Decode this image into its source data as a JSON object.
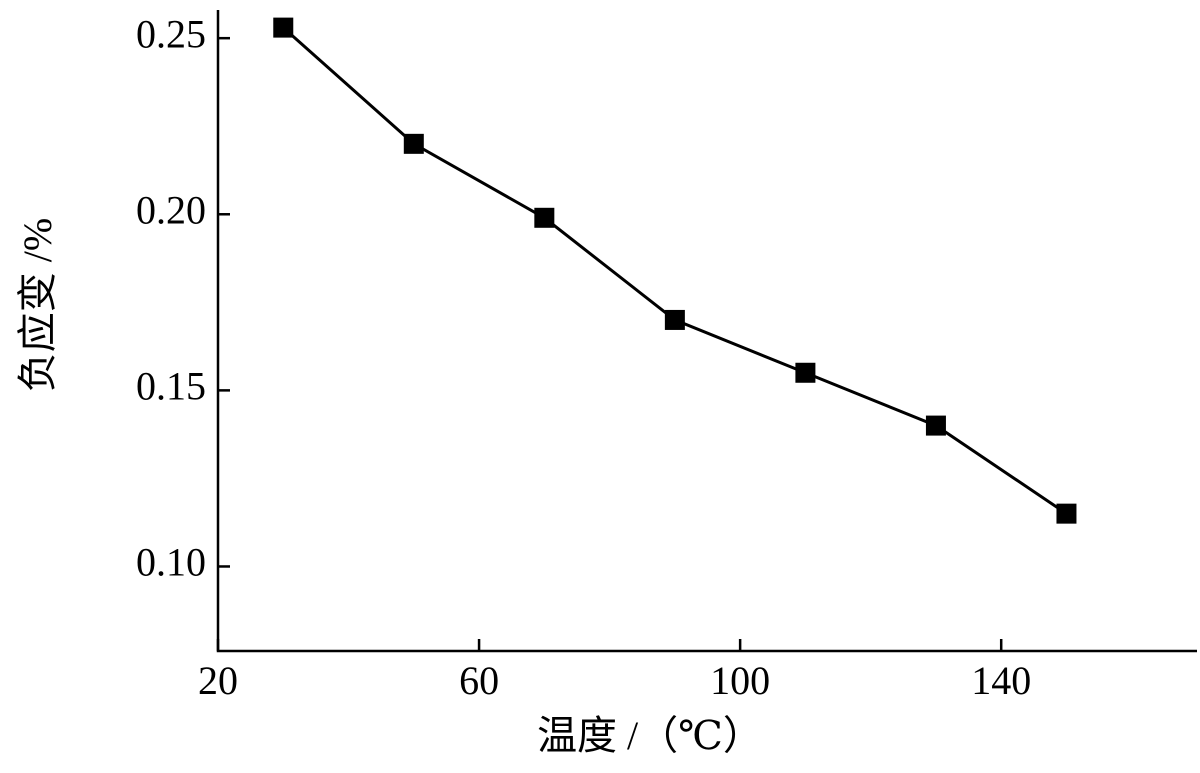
{
  "chart_data": {
    "type": "line",
    "x_label": "温度 /（℃）",
    "y_label": "负应变 /%",
    "x": [
      30,
      50,
      70,
      90,
      110,
      130,
      150
    ],
    "series": [
      {
        "color": "#000000",
        "values": [
          0.253,
          0.22,
          0.199,
          0.17,
          0.155,
          0.14,
          0.115
        ]
      }
    ],
    "xlim": [
      20,
      170
    ],
    "ylim": [
      0.076,
      0.258
    ],
    "xticks": [
      20,
      60,
      100,
      140
    ],
    "yticks": [
      {
        "value": 0.1,
        "label": "0.10"
      },
      0.15,
      {
        "value": 0.2,
        "label": "0.20"
      },
      0.25
    ]
  }
}
